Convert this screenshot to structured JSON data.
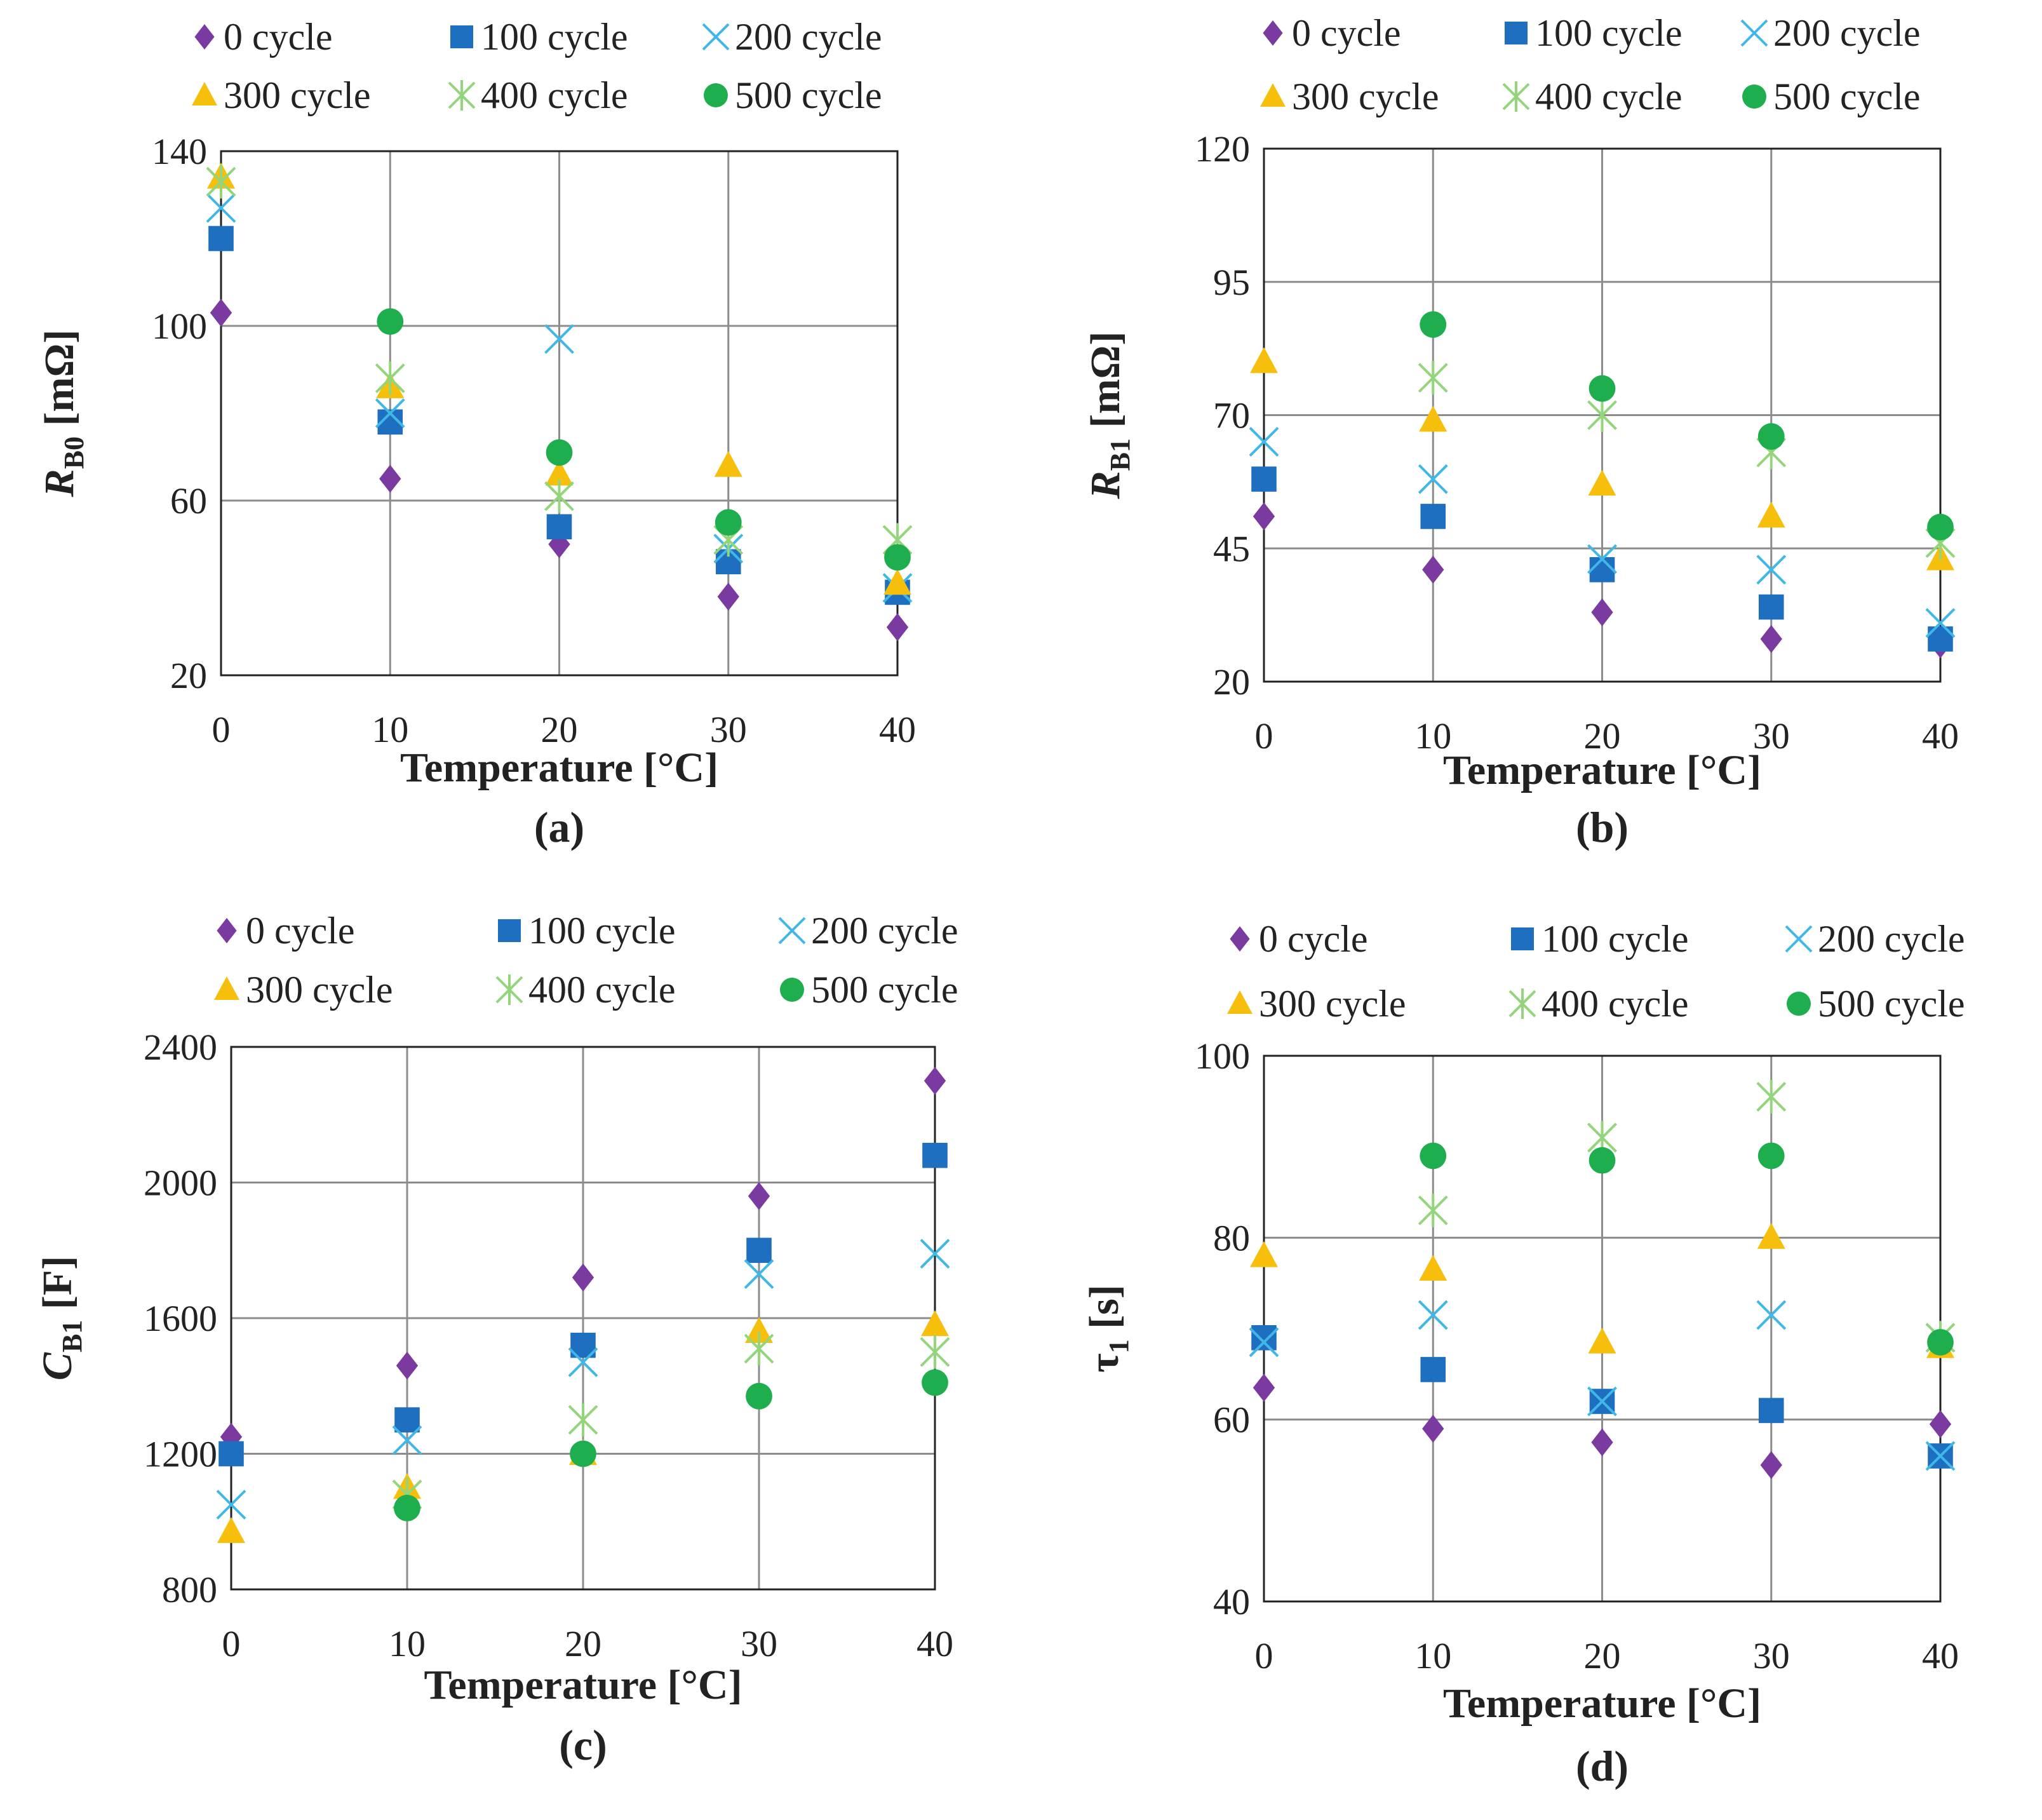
{
  "colors": {
    "0 cycle": "#7a3aa0",
    "100 cycle": "#1f6fc0",
    "200 cycle": "#3fb8e8",
    "300 cycle": "#f5bf0c",
    "400 cycle": "#92d57a",
    "500 cycle": "#1fae4e"
  },
  "markers": {
    "0 cycle": "diamond-icon",
    "100 cycle": "square-icon",
    "200 cycle": "x-icon",
    "300 cycle": "triangle-icon",
    "400 cycle": "asterisk-icon",
    "500 cycle": "circle-icon"
  },
  "chart_data": [
    {
      "type": "scatter",
      "panel": "(a)",
      "xlabel": "Temperature [°C]",
      "ylabel": {
        "main": "R",
        "sub": "B0",
        "unit": " [mΩ]"
      },
      "x": [
        0,
        10,
        20,
        30,
        40
      ],
      "xlim": [
        0,
        40
      ],
      "ylim": [
        20,
        140
      ],
      "yticks": [
        20,
        60,
        100,
        140
      ],
      "xticks": [
        0,
        10,
        20,
        30,
        40
      ],
      "legend": [
        "0 cycle",
        "100 cycle",
        "200 cycle",
        "300 cycle",
        "400 cycle",
        "500 cycle"
      ],
      "series": [
        {
          "name": "0 cycle",
          "values": [
            103,
            65,
            50,
            38,
            31
          ]
        },
        {
          "name": "100 cycle",
          "values": [
            120,
            78,
            54,
            46,
            39
          ]
        },
        {
          "name": "200 cycle",
          "values": [
            127,
            80,
            97,
            49,
            40
          ]
        },
        {
          "name": "300 cycle",
          "values": [
            134,
            86,
            66,
            68,
            41
          ]
        },
        {
          "name": "400 cycle",
          "values": [
            133,
            88,
            61,
            51,
            51
          ]
        },
        {
          "name": "500 cycle",
          "values": [
            null,
            101,
            71,
            55,
            47
          ]
        }
      ]
    },
    {
      "type": "scatter",
      "panel": "(b)",
      "xlabel": "Temperature [°C]",
      "ylabel": {
        "main": "R",
        "sub": "B1",
        "unit": " [mΩ]"
      },
      "x": [
        0,
        10,
        20,
        30,
        40
      ],
      "xlim": [
        0,
        40
      ],
      "ylim": [
        20,
        120
      ],
      "yticks": [
        20,
        45,
        70,
        95,
        120
      ],
      "xticks": [
        0,
        10,
        20,
        30,
        40
      ],
      "legend": [
        "0 cycle",
        "100 cycle",
        "200 cycle",
        "300 cycle",
        "400 cycle",
        "500 cycle"
      ],
      "series": [
        {
          "name": "0 cycle",
          "values": [
            51,
            41,
            33,
            28,
            27
          ]
        },
        {
          "name": "100 cycle",
          "values": [
            58,
            51,
            41,
            34,
            28
          ]
        },
        {
          "name": "200 cycle",
          "values": [
            65,
            58,
            43,
            41,
            31
          ]
        },
        {
          "name": "300 cycle",
          "values": [
            80,
            69,
            57,
            51,
            43
          ]
        },
        {
          "name": "400 cycle",
          "values": [
            null,
            77,
            70,
            63,
            46
          ]
        },
        {
          "name": "500 cycle",
          "values": [
            null,
            87,
            75,
            66,
            49
          ]
        }
      ]
    },
    {
      "type": "scatter",
      "panel": "(c)",
      "xlabel": "Temperature [°C]",
      "ylabel": {
        "main": "C",
        "sub": "B1",
        "unit": " [F]"
      },
      "x": [
        0,
        10,
        20,
        30,
        40
      ],
      "xlim": [
        0,
        40
      ],
      "ylim": [
        800,
        2400
      ],
      "yticks": [
        800,
        1200,
        1600,
        2000,
        2400
      ],
      "xticks": [
        0,
        10,
        20,
        30,
        40
      ],
      "legend": [
        "0 cycle",
        "100 cycle",
        "200 cycle",
        "300 cycle",
        "400 cycle",
        "500 cycle"
      ],
      "series": [
        {
          "name": "0 cycle",
          "values": [
            1250,
            1460,
            1720,
            1960,
            2300
          ]
        },
        {
          "name": "100 cycle",
          "values": [
            1200,
            1300,
            1520,
            1800,
            2080
          ]
        },
        {
          "name": "200 cycle",
          "values": [
            1050,
            1240,
            1470,
            1730,
            1790
          ]
        },
        {
          "name": "300 cycle",
          "values": [
            970,
            1100,
            1200,
            1560,
            1580
          ]
        },
        {
          "name": "400 cycle",
          "values": [
            null,
            1080,
            1300,
            1510,
            1500
          ]
        },
        {
          "name": "500 cycle",
          "values": [
            null,
            1040,
            1200,
            1370,
            1410
          ]
        }
      ]
    },
    {
      "type": "scatter",
      "panel": "(d)",
      "xlabel": "Temperature [°C]",
      "ylabel": {
        "main": "τ",
        "sub": "1",
        "unit": " [s]"
      },
      "x": [
        0,
        10,
        20,
        30,
        40
      ],
      "xlim": [
        0,
        40
      ],
      "ylim": [
        40,
        100
      ],
      "yticks": [
        40,
        60,
        80,
        100
      ],
      "xticks": [
        0,
        10,
        20,
        30,
        40
      ],
      "legend": [
        "0 cycle",
        "100 cycle",
        "200 cycle",
        "300 cycle",
        "400 cycle",
        "500 cycle"
      ],
      "series": [
        {
          "name": "0 cycle",
          "values": [
            63.5,
            59,
            57.5,
            55,
            59.5
          ]
        },
        {
          "name": "100 cycle",
          "values": [
            69,
            65.5,
            62,
            61,
            56
          ]
        },
        {
          "name": "200 cycle",
          "values": [
            68.5,
            71.5,
            62,
            71.5,
            56
          ]
        },
        {
          "name": "300 cycle",
          "values": [
            78,
            76.5,
            68.5,
            80,
            68
          ]
        },
        {
          "name": "400 cycle",
          "values": [
            null,
            83,
            91,
            95.5,
            69
          ]
        },
        {
          "name": "500 cycle",
          "values": [
            null,
            89,
            88.5,
            89,
            68.5
          ]
        }
      ]
    }
  ]
}
